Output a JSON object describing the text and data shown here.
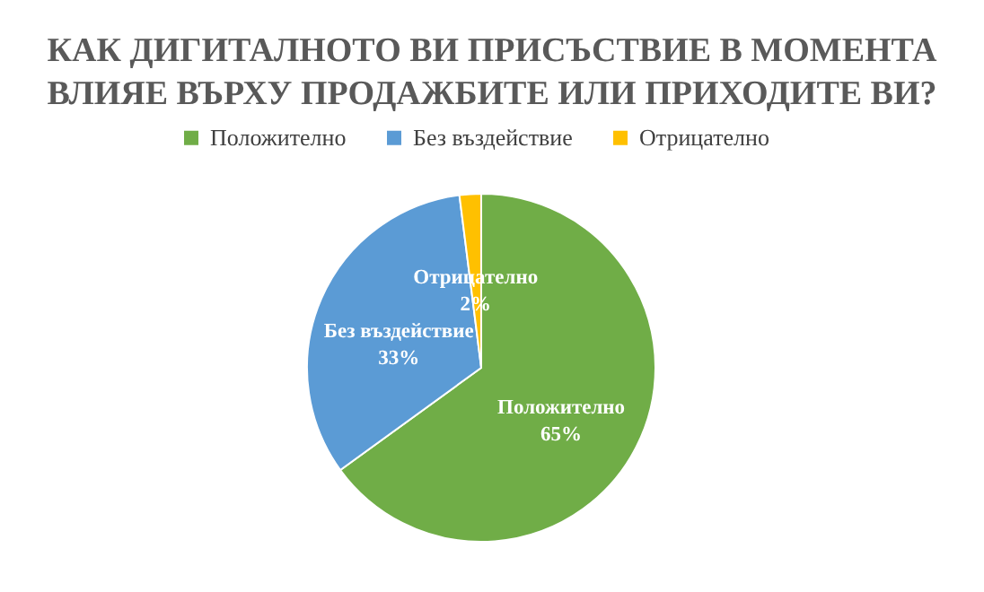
{
  "chart_data": {
    "type": "pie",
    "title": "КАК ДИГИТАЛНОТО  ВИ ПРИСЪСТВИЕ  В МОМЕНТА\nВЛИЯЕ ВЪРХУ ПРОДАЖБИТЕ  ИЛИ ПРИХОДИТЕ  ВИ?",
    "categories": [
      "Положително",
      "Без въздействие",
      "Отрицателно"
    ],
    "values": [
      65,
      33,
      2
    ],
    "value_labels": [
      "65%",
      "33%",
      "2%"
    ],
    "colors": [
      "#70ad47",
      "#5b9bd5",
      "#ffc000"
    ],
    "legend": "top"
  }
}
